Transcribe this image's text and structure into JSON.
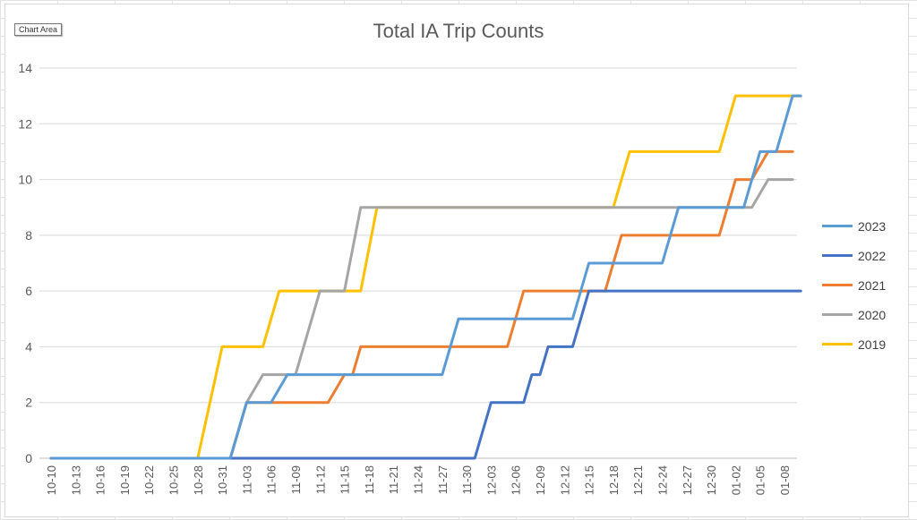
{
  "chart_area_tooltip": "Chart Area",
  "chart_data": {
    "type": "line",
    "title": "Total IA Trip Counts",
    "xlabel": "",
    "ylabel": "",
    "ylim": [
      0,
      14
    ],
    "yticks": [
      0,
      2,
      4,
      6,
      8,
      10,
      12,
      14
    ],
    "grid": true,
    "legend_position": "right",
    "x_start": "10-10",
    "x_end": "01-10",
    "x_tick_labels": [
      "10-10",
      "10-13",
      "10-16",
      "10-19",
      "10-22",
      "10-25",
      "10-28",
      "10-31",
      "11-03",
      "11-06",
      "11-09",
      "11-12",
      "11-15",
      "11-18",
      "11-21",
      "11-24",
      "11-27",
      "11-30",
      "12-03",
      "12-06",
      "12-09",
      "12-12",
      "12-15",
      "12-18",
      "12-21",
      "12-24",
      "12-27",
      "12-30",
      "01-02",
      "01-05",
      "01-08"
    ],
    "series": [
      {
        "name": "2023",
        "color": "#5b9bd5",
        "points": [
          [
            "10-10",
            0
          ],
          [
            "11-01",
            0
          ],
          [
            "11-02",
            1
          ],
          [
            "11-02",
            1
          ],
          [
            "11-03",
            2
          ],
          [
            "11-06",
            2
          ],
          [
            "11-08",
            3
          ],
          [
            "11-27",
            3
          ],
          [
            "11-29",
            5
          ],
          [
            "12-13",
            5
          ],
          [
            "12-15",
            7
          ],
          [
            "12-24",
            7
          ],
          [
            "12-26",
            9
          ],
          [
            "01-03",
            9
          ],
          [
            "01-05",
            11
          ],
          [
            "01-07",
            11
          ],
          [
            "01-09",
            13
          ],
          [
            "01-10",
            13
          ]
        ]
      },
      {
        "name": "2022",
        "color": "#4472c4",
        "points": [
          [
            "10-10",
            0
          ],
          [
            "12-01",
            0
          ],
          [
            "12-03",
            2
          ],
          [
            "12-07",
            2
          ],
          [
            "12-08",
            3
          ],
          [
            "12-09",
            3
          ],
          [
            "12-10",
            4
          ],
          [
            "12-13",
            4
          ],
          [
            "12-14",
            5
          ],
          [
            "12-14",
            5
          ],
          [
            "12-15",
            6
          ],
          [
            "01-10",
            6
          ]
        ]
      },
      {
        "name": "2021",
        "color": "#ed7d31",
        "points": [
          [
            "10-10",
            0
          ],
          [
            "11-01",
            0
          ],
          [
            "11-03",
            2
          ],
          [
            "11-13",
            2
          ],
          [
            "11-15",
            3
          ],
          [
            "11-16",
            3
          ],
          [
            "11-17",
            4
          ],
          [
            "12-05",
            4
          ],
          [
            "12-07",
            6
          ],
          [
            "12-17",
            6
          ],
          [
            "12-19",
            8
          ],
          [
            "12-31",
            8
          ],
          [
            "01-02",
            10
          ],
          [
            "01-04",
            10
          ],
          [
            "01-06",
            11
          ],
          [
            "01-09",
            11
          ]
        ]
      },
      {
        "name": "2020",
        "color": "#a5a5a5",
        "points": [
          [
            "10-10",
            0
          ],
          [
            "11-01",
            0
          ],
          [
            "11-03",
            2
          ],
          [
            "11-05",
            3
          ],
          [
            "11-09",
            3
          ],
          [
            "11-12",
            6
          ],
          [
            "11-15",
            6
          ],
          [
            "11-17",
            9
          ],
          [
            "12-18",
            9
          ],
          [
            "01-04",
            9
          ],
          [
            "01-06",
            10
          ],
          [
            "01-09",
            10
          ]
        ]
      },
      {
        "name": "2019",
        "color": "#ffc000",
        "points": [
          [
            "10-10",
            0
          ],
          [
            "10-28",
            0
          ],
          [
            "10-31",
            4
          ],
          [
            "11-05",
            4
          ],
          [
            "11-07",
            6
          ],
          [
            "11-14",
            6
          ],
          [
            "11-17",
            6
          ],
          [
            "11-19",
            9
          ],
          [
            "12-18",
            9
          ],
          [
            "12-20",
            11
          ],
          [
            "12-31",
            11
          ],
          [
            "01-02",
            13
          ],
          [
            "01-10",
            13
          ]
        ]
      }
    ]
  }
}
